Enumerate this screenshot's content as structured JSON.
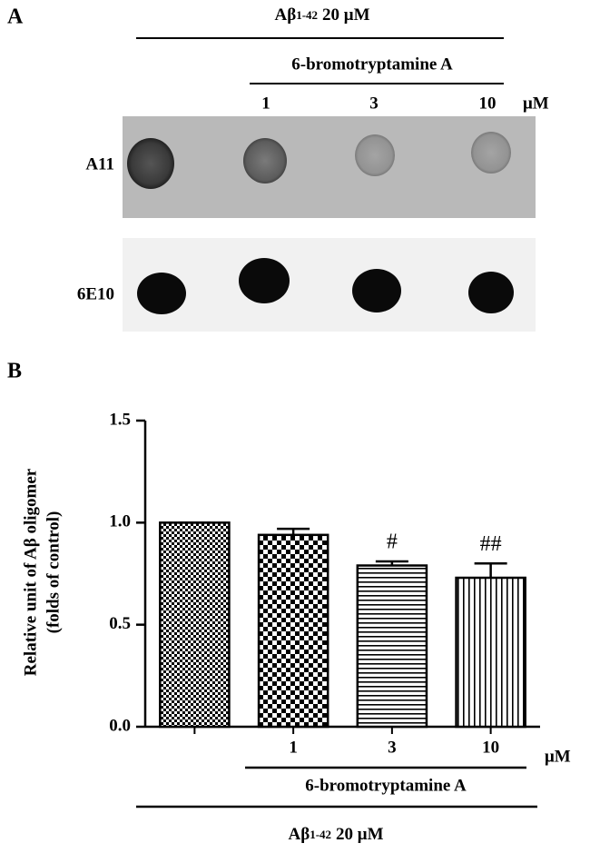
{
  "panel_a": {
    "panel_label": "A",
    "treatment": "Aβ",
    "treatment_sub": "1-42",
    "treatment_dose": "20 μM",
    "compound": "6-bromotryptamine A",
    "doses": [
      "1",
      "3",
      "10"
    ],
    "unit": "μM",
    "rows": [
      "A11",
      "6E10"
    ]
  },
  "chart_data": {
    "type": "bar",
    "panel_label": "B",
    "y_label": [
      "Relative unit of Aβ oligomer",
      "(folds of control)"
    ],
    "categories": [
      null,
      "1",
      "3",
      "10"
    ],
    "values": [
      1.0,
      0.94,
      0.79,
      0.73
    ],
    "errors": [
      0,
      0.03,
      0.02,
      0.07
    ],
    "annotations": [
      null,
      null,
      "#",
      "##"
    ],
    "patterns": [
      "checker-fine",
      "checker-coarse",
      "horizontal",
      "vertical"
    ],
    "color": "#000000",
    "ylim": [
      0,
      1.5
    ],
    "yticks": [
      {
        "value": 0,
        "label": "0.0"
      },
      0.5,
      {
        "value": 1,
        "label": "1.0"
      },
      1.5
    ],
    "unit": "μM",
    "compound": "6-bromotryptamine A",
    "treatment": "Aβ",
    "treatment_sub": "1-42",
    "treatment_dose": "20 μM"
  }
}
